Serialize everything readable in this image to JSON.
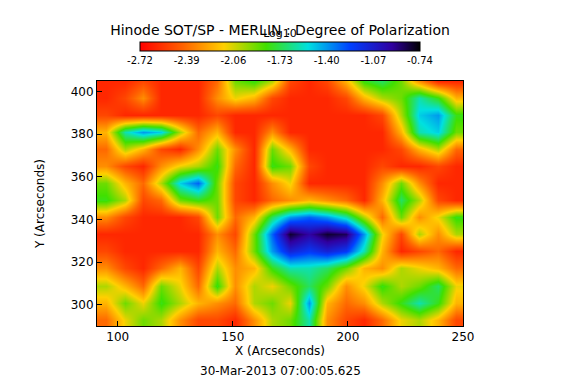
{
  "chart_data": {
    "type": "heatmap",
    "title": "Hinode SOT/SP - MERLIN : Degree of Polarization",
    "annotation": "30-Mar-2013 07:00:05.625",
    "x_label": "X (Arcseconds)",
    "y_label": "Y (Arcseconds)",
    "xlim": [
      91,
      250
    ],
    "ylim": [
      290,
      405
    ],
    "xticks": [
      100,
      150,
      200,
      250
    ],
    "yticks": [
      300,
      320,
      340,
      360,
      380,
      400
    ],
    "x": [
      95,
      103,
      111,
      119,
      127,
      135,
      143,
      151,
      159,
      167,
      175,
      183,
      191,
      199,
      207,
      215,
      223,
      231,
      239,
      247
    ],
    "y": [
      293,
      301,
      309,
      317,
      325,
      333,
      341,
      349,
      357,
      365,
      373,
      381,
      389,
      397,
      405
    ],
    "z": [
      [
        -2.4,
        -2.1,
        -1.9,
        -2.0,
        -2.3,
        -2.5,
        -2.5,
        -2.6,
        -2.3,
        -2.0,
        -1.9,
        -1.6,
        -2.3,
        -2.5,
        -2.6,
        -2.4,
        -2.1,
        -2.0,
        -2.2,
        -2.5
      ],
      [
        -2.2,
        -1.9,
        -2.1,
        -1.8,
        -2.0,
        -2.2,
        -2.3,
        -2.4,
        -2.0,
        -1.9,
        -2.1,
        -1.4,
        -2.2,
        -2.4,
        -2.3,
        -2.0,
        -1.8,
        -1.6,
        -1.8,
        -2.2
      ],
      [
        -2.0,
        -2.2,
        -2.4,
        -1.9,
        -2.1,
        -2.4,
        -1.8,
        -2.3,
        -2.0,
        -2.1,
        -1.9,
        -1.7,
        -1.9,
        -2.3,
        -2.1,
        -1.8,
        -2.0,
        -1.9,
        -1.7,
        -2.1
      ],
      [
        -2.3,
        -2.5,
        -2.6,
        -2.4,
        -2.2,
        -2.5,
        -2.0,
        -2.3,
        -2.2,
        -1.8,
        -1.6,
        -1.6,
        -1.7,
        -1.9,
        -2.2,
        -2.3,
        -2.0,
        -2.1,
        -2.2,
        -2.4
      ],
      [
        -2.5,
        -2.6,
        -2.6,
        -2.6,
        -2.6,
        -2.6,
        -2.2,
        -2.4,
        -1.9,
        -1.4,
        -1.1,
        -1.2,
        -1.1,
        -1.2,
        -1.6,
        -2.2,
        -2.6,
        -2.5,
        -2.4,
        -2.6
      ],
      [
        -2.6,
        -2.6,
        -2.6,
        -2.6,
        -2.6,
        -2.6,
        -2.3,
        -2.5,
        -1.9,
        -1.3,
        -0.8,
        -0.95,
        -0.8,
        -0.85,
        -1.4,
        -2.1,
        -2.5,
        -2.0,
        -2.3,
        -2.0
      ],
      [
        -2.3,
        -2.5,
        -2.6,
        -2.6,
        -2.6,
        -2.5,
        -1.9,
        -2.4,
        -2.2,
        -1.7,
        -1.4,
        -1.3,
        -1.4,
        -1.6,
        -2.0,
        -2.4,
        -1.9,
        -2.3,
        -2.1,
        -1.8
      ],
      [
        -1.8,
        -2.0,
        -2.5,
        -2.4,
        -1.9,
        -1.8,
        -1.9,
        -2.5,
        -2.6,
        -2.4,
        -2.3,
        -2.2,
        -2.3,
        -2.4,
        -2.6,
        -2.2,
        -1.7,
        -2.0,
        -2.5,
        -2.6
      ],
      [
        -1.9,
        -2.2,
        -2.4,
        -2.0,
        -1.5,
        -1.3,
        -1.9,
        -2.5,
        -2.6,
        -2.3,
        -2.1,
        -2.6,
        -2.6,
        -2.6,
        -2.6,
        -2.3,
        -1.9,
        -2.3,
        -2.6,
        -2.6
      ],
      [
        -2.3,
        -2.5,
        -2.6,
        -2.3,
        -2.1,
        -2.0,
        -1.8,
        -2.4,
        -2.6,
        -1.8,
        -1.9,
        -2.5,
        -2.6,
        -2.6,
        -2.6,
        -2.5,
        -2.6,
        -2.6,
        -2.5,
        -2.6
      ],
      [
        -2.4,
        -2.0,
        -2.2,
        -2.5,
        -2.6,
        -2.3,
        -1.9,
        -2.3,
        -2.6,
        -1.9,
        -2.2,
        -2.6,
        -2.6,
        -2.6,
        -2.6,
        -2.6,
        -2.5,
        -2.2,
        -2.0,
        -2.4
      ],
      [
        -2.2,
        -1.6,
        -1.4,
        -1.5,
        -2.0,
        -2.4,
        -2.2,
        -2.6,
        -2.6,
        -2.3,
        -2.6,
        -2.6,
        -2.6,
        -2.6,
        -2.6,
        -2.6,
        -2.2,
        -1.6,
        -1.5,
        -1.9
      ],
      [
        -2.5,
        -2.6,
        -2.6,
        -2.6,
        -2.6,
        -2.6,
        -2.5,
        -2.6,
        -2.6,
        -2.6,
        -2.6,
        -2.6,
        -2.6,
        -2.6,
        -2.6,
        -2.5,
        -2.0,
        -1.5,
        -1.4,
        -1.8
      ],
      [
        -2.6,
        -2.5,
        -2.3,
        -2.6,
        -2.6,
        -2.6,
        -2.3,
        -2.1,
        -2.2,
        -2.5,
        -2.6,
        -2.6,
        -2.6,
        -2.5,
        -2.2,
        -2.0,
        -1.9,
        -1.6,
        -1.8,
        -2.2
      ],
      [
        -2.6,
        -2.6,
        -2.5,
        -2.6,
        -2.6,
        -2.6,
        -2.4,
        -1.9,
        -1.8,
        -2.0,
        -2.5,
        -2.6,
        -2.5,
        -2.2,
        -1.8,
        -1.7,
        -1.9,
        -2.3,
        -2.6,
        -2.6
      ]
    ],
    "colorbar": {
      "title": "Log10",
      "range": [
        -2.72,
        -0.74
      ],
      "ticks": [
        -2.72,
        -2.39,
        -2.06,
        -1.73,
        {
          "value": -1.4,
          "label": "-1.40"
        },
        -1.07,
        -0.74
      ]
    }
  }
}
